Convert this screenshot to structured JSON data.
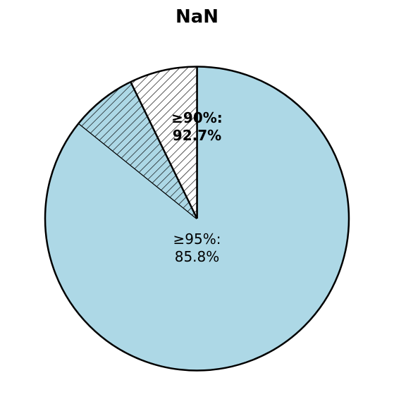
{
  "chart_data": {
    "type": "pie",
    "title": "NaN",
    "slices": [
      {
        "label_lines": [
          "≥95%:",
          "85.8%"
        ],
        "value": 85.8,
        "color": "#add8e6",
        "hatch": false,
        "bold": false
      },
      {
        "label_lines": [],
        "value": 7.0,
        "color": "#add8e6",
        "hatch": true,
        "bold": false
      },
      {
        "label_lines": [
          "≥90%:",
          "92.7%"
        ],
        "value": 7.2,
        "color": "#ffffff",
        "hatch": true,
        "bold": true
      }
    ],
    "start_angle_deg": 90,
    "direction": "clockwise",
    "edge_color": "#000000"
  }
}
